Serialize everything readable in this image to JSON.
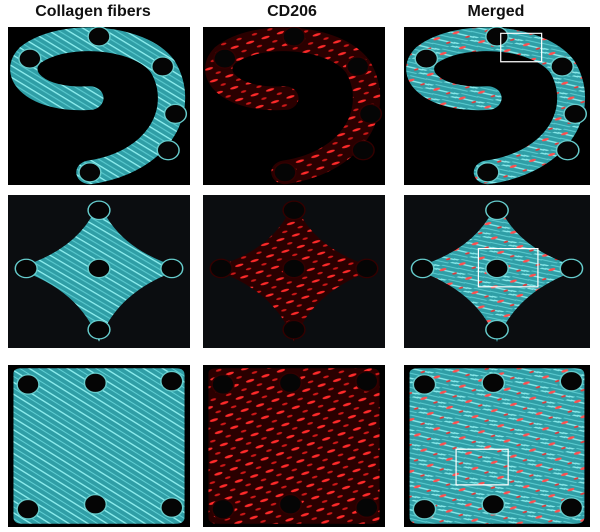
{
  "columns": [
    {
      "header": "Collagen fibers"
    },
    {
      "header": "CD206"
    },
    {
      "header": "Merged"
    }
  ]
}
